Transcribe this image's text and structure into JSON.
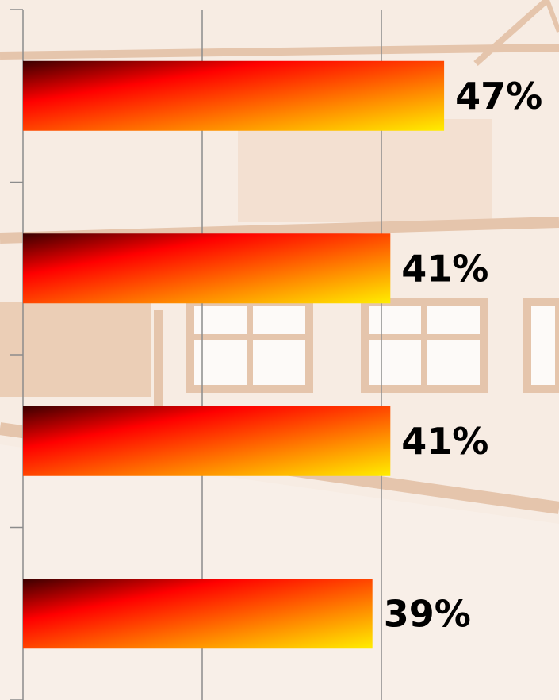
{
  "chart_data": {
    "type": "bar",
    "orientation": "horizontal",
    "categories": [
      "",
      "",
      "",
      ""
    ],
    "values": [
      47,
      41,
      41,
      39
    ],
    "value_labels": [
      "47%",
      "41%",
      "41%",
      "39%"
    ],
    "xlim": [
      0,
      60
    ],
    "gridlines": [
      0,
      20,
      40
    ],
    "grid": true,
    "title": "",
    "xlabel": "",
    "ylabel": "",
    "bar_gradient": [
      "#3a0000",
      "#ff0000",
      "#ff8a00",
      "#ffee00"
    ]
  }
}
